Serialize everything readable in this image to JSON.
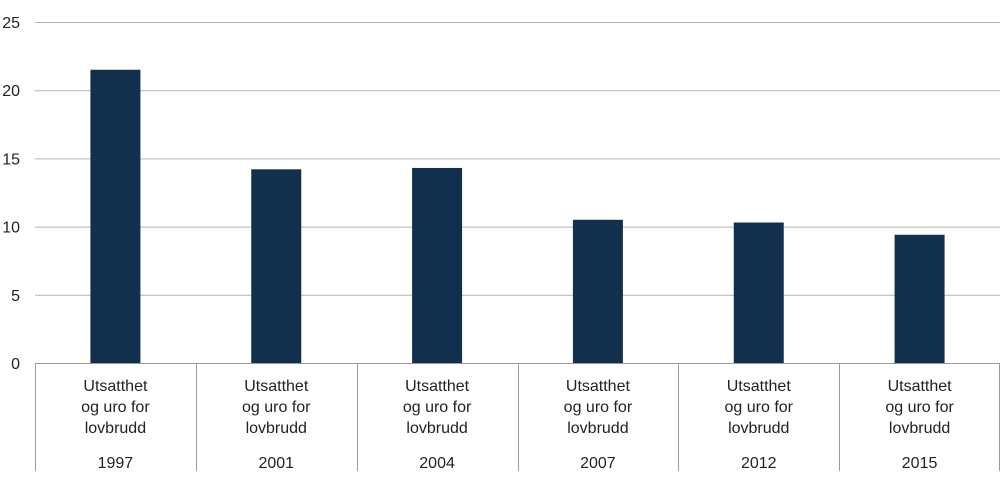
{
  "chart_data": {
    "type": "bar",
    "title": "",
    "xlabel": "",
    "ylabel": "",
    "ylim": [
      0,
      25
    ],
    "yticks": [
      0,
      5,
      10,
      15,
      20,
      25
    ],
    "grid": true,
    "bar_color": "#12304d",
    "categories": [
      {
        "label_lines": [
          "Utsatthet",
          "og uro for",
          "lovbrudd"
        ],
        "year": "1997"
      },
      {
        "label_lines": [
          "Utsatthet",
          "og uro for",
          "lovbrudd"
        ],
        "year": "2001"
      },
      {
        "label_lines": [
          "Utsatthet",
          "og uro for",
          "lovbrudd"
        ],
        "year": "2004"
      },
      {
        "label_lines": [
          "Utsatthet",
          "og uro for",
          "lovbrudd"
        ],
        "year": "2007"
      },
      {
        "label_lines": [
          "Utsatthet",
          "og uro for",
          "lovbrudd"
        ],
        "year": "2012"
      },
      {
        "label_lines": [
          "Utsatthet",
          "og uro for",
          "lovbrudd"
        ],
        "year": "2015"
      }
    ],
    "values": [
      21.5,
      14.2,
      14.3,
      10.5,
      10.3,
      9.4
    ]
  }
}
